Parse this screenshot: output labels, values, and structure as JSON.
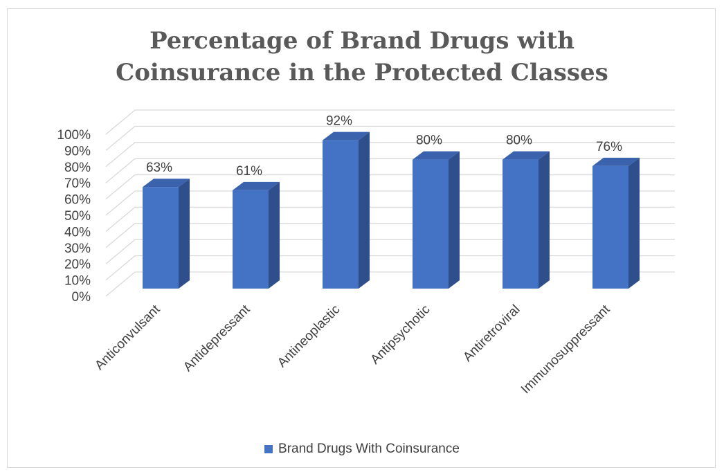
{
  "chart_data": {
    "type": "bar",
    "title_lines": [
      "Percentage of Brand Drugs with",
      "Coinsurance in the Protected Classes"
    ],
    "categories": [
      "Anticonvulsant",
      "Antidepressant",
      "Antineoplastic",
      "Antipsychotic",
      "Antiretroviral",
      "Immunosuppressant"
    ],
    "series": [
      {
        "name": "Brand Drugs With Coinsurance",
        "values": [
          63,
          61,
          92,
          80,
          80,
          76
        ],
        "labels": [
          "63%",
          "61%",
          "92%",
          "80%",
          "80%",
          "76%"
        ]
      }
    ],
    "y_ticks": [
      "0%",
      "10%",
      "20%",
      "30%",
      "40%",
      "50%",
      "60%",
      "70%",
      "80%",
      "90%",
      "100%"
    ],
    "ylim": [
      0,
      100
    ],
    "grid": true,
    "legend_position": "bottom",
    "style": "3d-column",
    "colors": {
      "front": "#4472c4",
      "side": "#2f4f8c",
      "top": "#3a62ad",
      "grid": "#d9d9d9",
      "text": "#404040",
      "title": "#595959"
    }
  }
}
